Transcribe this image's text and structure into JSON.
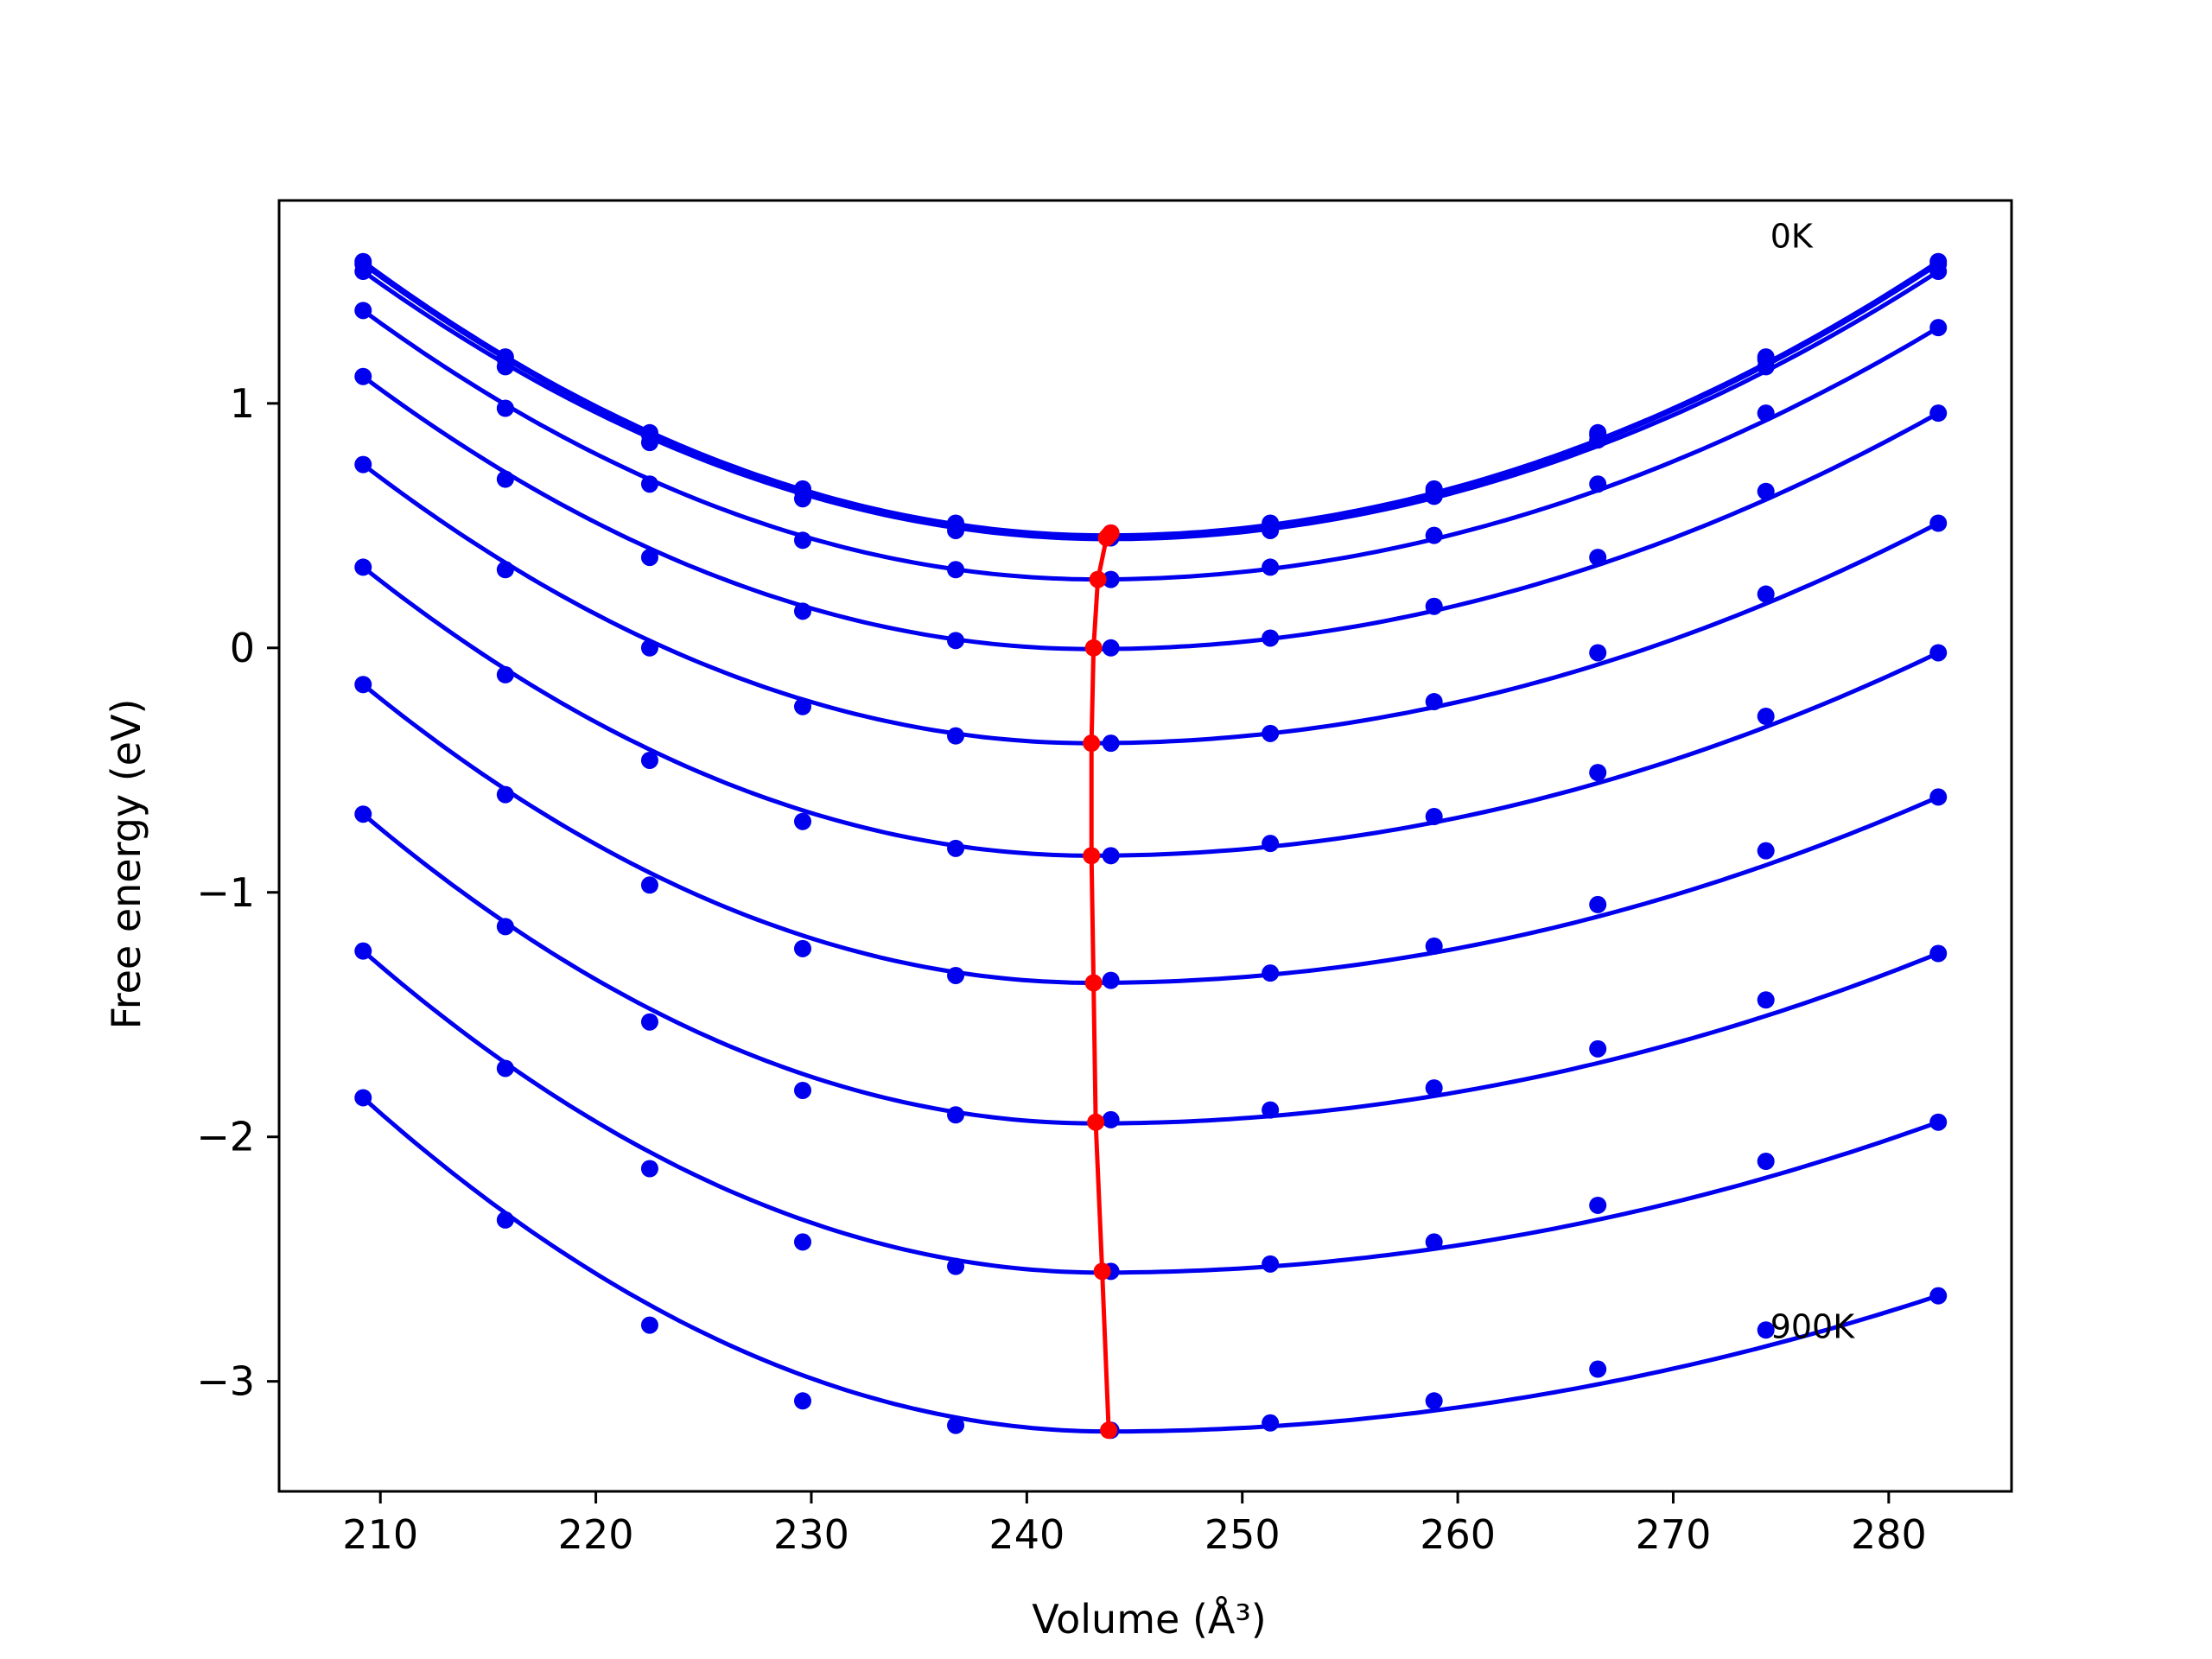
{
  "chart_data": {
    "type": "scatter",
    "xlabel": "Volume (Å³)",
    "ylabel": "Free energy (eV)",
    "xlim": [
      205.3,
      285.7
    ],
    "ylim": [
      -3.45,
      1.83
    ],
    "xticks": [
      210,
      220,
      230,
      240,
      250,
      260,
      270,
      280
    ],
    "xtick_labels": [
      "210",
      "220",
      "230",
      "240",
      "250",
      "260",
      "270",
      "280"
    ],
    "yticks": [
      -3,
      -2,
      -1,
      0,
      1
    ],
    "ytick_labels": [
      "−3",
      "−2",
      "−1",
      "0",
      "1"
    ],
    "grid": false,
    "annotations": [
      {
        "text": "0K",
        "x": 274.5,
        "y": 1.68
      },
      {
        "text": "900K",
        "x": 274.5,
        "y": -2.78
      }
    ],
    "colors": {
      "series": "#0000ee",
      "minima": "#ff0000",
      "frame": "#000000"
    },
    "x": [
      209.2,
      215.8,
      222.5,
      229.6,
      236.7,
      243.9,
      251.3,
      258.9,
      266.5,
      274.3,
      282.3
    ],
    "series": [
      {
        "values": [
          1.58,
          1.19,
          0.88,
          0.65,
          0.51,
          0.47,
          0.51,
          0.65,
          0.88,
          1.19,
          1.58
        ],
        "fit": {
          "vmin": 243.7,
          "emin": 0.46,
          "a_left": 0.00041,
          "a_right": 0.000385
        }
      },
      {
        "values": [
          1.57,
          1.18,
          0.87,
          0.64,
          0.5,
          0.46,
          0.5,
          0.64,
          0.87,
          1.18,
          1.57
        ],
        "fit": {
          "vmin": 243.7,
          "emin": 0.455,
          "a_left": 0.000405,
          "a_right": 0.000382
        }
      },
      {
        "values": [
          1.54,
          1.15,
          0.84,
          0.61,
          0.48,
          0.45,
          0.48,
          0.62,
          0.85,
          1.15,
          1.54
        ],
        "fit": {
          "vmin": 243.8,
          "emin": 0.445,
          "a_left": 0.000398,
          "a_right": 0.000375
        }
      },
      {
        "values": [
          1.38,
          0.98,
          0.67,
          0.44,
          0.32,
          0.28,
          0.33,
          0.46,
          0.67,
          0.96,
          1.31
        ],
        "fit": {
          "vmin": 243.3,
          "emin": 0.28,
          "a_left": 0.000405,
          "a_right": 0.00033
        }
      },
      {
        "values": [
          1.11,
          0.69,
          0.37,
          0.15,
          0.03,
          0.0,
          0.04,
          0.17,
          0.37,
          0.64,
          0.96
        ],
        "fit": {
          "vmin": 243.1,
          "emin": -0.005,
          "a_left": 0.00042,
          "a_right": 0.000273
        }
      },
      {
        "values": [
          0.75,
          0.32,
          0.0,
          -0.24,
          -0.36,
          -0.39,
          -0.35,
          -0.22,
          -0.02,
          0.22,
          0.51
        ],
        "fit": {
          "vmin": 243.0,
          "emin": -0.39,
          "a_left": 0.00043,
          "a_right": 0.000212
        }
      },
      {
        "values": [
          0.33,
          -0.11,
          -0.46,
          -0.71,
          -0.82,
          -0.85,
          -0.8,
          -0.69,
          -0.51,
          -0.28,
          -0.02
        ],
        "fit": {
          "vmin": 243.0,
          "emin": -0.85,
          "a_left": 0.00045,
          "a_right": 0.000164
        }
      },
      {
        "values": [
          -0.15,
          -0.6,
          -0.97,
          -1.23,
          -1.34,
          -1.36,
          -1.33,
          -1.22,
          -1.05,
          -0.83,
          -0.61
        ],
        "fit": {
          "vmin": 243.1,
          "emin": -1.37,
          "a_left": 0.00047,
          "a_right": 0.000121
        }
      },
      {
        "values": [
          -0.68,
          -1.14,
          -1.53,
          -1.81,
          -1.91,
          -1.93,
          -1.89,
          -1.8,
          -1.64,
          -1.44,
          -1.25
        ],
        "fit": {
          "vmin": 243.2,
          "emin": -1.945,
          "a_left": 0.0005,
          "a_right": 9.7e-05
        }
      },
      {
        "values": [
          -1.24,
          -1.72,
          -2.13,
          -2.43,
          -2.53,
          -2.55,
          -2.52,
          -2.43,
          -2.28,
          -2.1,
          -1.94
        ],
        "fit": {
          "vmin": 243.5,
          "emin": -2.555,
          "a_left": 0.00054,
          "a_right": 8.2e-05
        }
      },
      {
        "values": [
          -1.84,
          -2.34,
          -2.77,
          -3.08,
          -3.18,
          -3.2,
          -3.17,
          -3.08,
          -2.95,
          -2.79,
          -2.65
        ],
        "fit": {
          "vmin": 243.8,
          "emin": -3.205,
          "a_left": 0.00058,
          "a_right": 7e-05
        }
      }
    ],
    "minima": {
      "x": [
        243.9,
        243.8,
        243.7,
        243.3,
        243.1,
        243.0,
        243.0,
        243.1,
        243.2,
        243.5,
        243.8
      ],
      "y": [
        0.47,
        0.46,
        0.45,
        0.28,
        0.0,
        -0.39,
        -0.85,
        -1.37,
        -1.94,
        -2.55,
        -3.2
      ]
    }
  }
}
